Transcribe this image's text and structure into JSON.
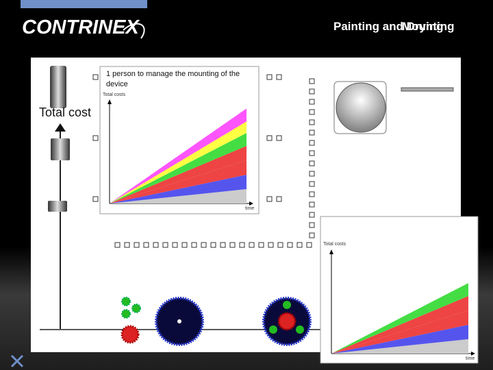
{
  "header": {
    "logo_text": "CONTRINEX",
    "title_overlap_a": "Painting and Drying",
    "title_overlap_b": "Mounting"
  },
  "slide": {
    "caption": "1 person to manage the mounting of the device",
    "total_cost_label": "Total cost",
    "brand_icon": "contrinex-x-icon",
    "colors": {
      "brand_blue": "#6f90c8",
      "gear_green": "#22bb22",
      "gear_red": "#dd2222",
      "gear_dark": "#0a0a3a"
    }
  },
  "chart_data": [
    {
      "type": "area",
      "title": "",
      "xlabel": "time",
      "ylabel": "Total costs",
      "stacked": true,
      "x": [
        0,
        1
      ],
      "series": [
        {
          "color": "#cccccc",
          "values": [
            0,
            0.1
          ]
        },
        {
          "color": "#5555ee",
          "values": [
            0,
            0.1
          ]
        },
        {
          "color": "#ee4444",
          "values": [
            0,
            0.1
          ]
        },
        {
          "color": "#ee4444",
          "values": [
            0,
            0.1
          ]
        },
        {
          "color": "#44dd44",
          "values": [
            0,
            0.09
          ]
        },
        {
          "color": "#ffff44",
          "values": [
            0,
            0.08
          ]
        },
        {
          "color": "#ff55ff",
          "values": [
            0,
            0.09
          ]
        }
      ]
    },
    {
      "type": "area",
      "title": "",
      "xlabel": "time",
      "ylabel": "Total costs",
      "stacked": true,
      "x": [
        0,
        1
      ],
      "series": [
        {
          "color": "#cccccc",
          "values": [
            0,
            0.1
          ]
        },
        {
          "color": "#5555ee",
          "values": [
            0,
            0.1
          ]
        },
        {
          "color": "#ee4444",
          "values": [
            0,
            0.1
          ]
        },
        {
          "color": "#ee4444",
          "values": [
            0,
            0.1
          ]
        },
        {
          "color": "#44dd44",
          "values": [
            0,
            0.09
          ]
        }
      ]
    }
  ]
}
